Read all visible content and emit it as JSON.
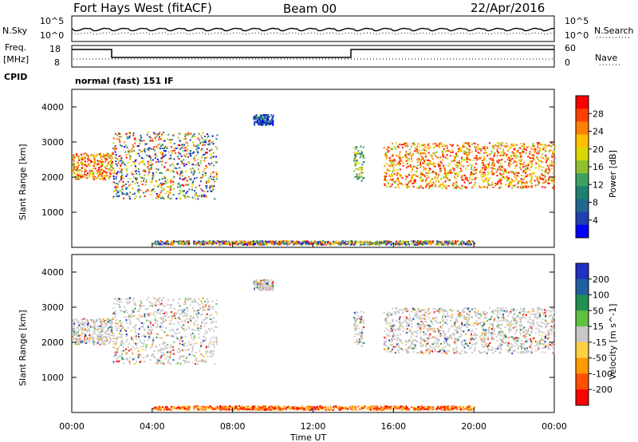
{
  "header": {
    "station": "Fort Hays West (fitACF)",
    "beam": "Beam 00",
    "date": "22/Apr/2016"
  },
  "noise_panel": {
    "left_label": "N.Sky",
    "right_label": "N.Search",
    "left_ticks": [
      "10^5",
      "10^0"
    ],
    "right_ticks": [
      "10^5",
      "10^0"
    ]
  },
  "freq_panel": {
    "left_label_1": "Freq.",
    "left_label_2": "[MHz]",
    "left_ticks": [
      "18",
      "8"
    ],
    "right_label": "Nave",
    "right_ticks": [
      "60",
      "0"
    ],
    "cpid_label": "CPID",
    "cpid_text": "normal (fast) 151 IF"
  },
  "chart_data": [
    {
      "type": "heatmap",
      "ylabel": "Slant Range [km]",
      "y_ticks": [
        "1000",
        "2000",
        "3000",
        "4000"
      ],
      "ylim": [
        0,
        4500
      ],
      "x_ticks": [
        "00:00",
        "04:00",
        "08:00",
        "12:00",
        "16:00",
        "20:00",
        "00:00"
      ],
      "xlabel": "Time UT",
      "colorbar": {
        "label": "Power [dB]",
        "ticks": [
          "28",
          "24",
          "20",
          "16",
          "12",
          "8",
          "4"
        ],
        "colors": [
          "#ff0000",
          "#ff4000",
          "#ff8000",
          "#ffc000",
          "#d8d800",
          "#90c030",
          "#40a060",
          "#208070",
          "#206890",
          "#2040b0",
          "#0000ff"
        ]
      },
      "echo_regions": [
        {
          "start_h": 0.0,
          "end_h": 2.0,
          "range_km": [
            1950,
            2700
          ],
          "level": "high"
        },
        {
          "start_h": 2.0,
          "end_h": 7.2,
          "range_km": [
            1400,
            3300
          ],
          "level": "mixed"
        },
        {
          "start_h": 9.0,
          "end_h": 10.0,
          "range_km": [
            3500,
            3800
          ],
          "level": "low"
        },
        {
          "start_h": 14.0,
          "end_h": 14.5,
          "range_km": [
            1900,
            2900
          ],
          "level": "mid"
        },
        {
          "start_h": 15.5,
          "end_h": 24.0,
          "range_km": [
            1700,
            3000
          ],
          "level": "high"
        }
      ]
    },
    {
      "type": "heatmap",
      "ylabel": "Slant Range [km]",
      "y_ticks": [
        "1000",
        "2000",
        "3000",
        "4000"
      ],
      "ylim": [
        0,
        4500
      ],
      "x_ticks": [
        "00:00",
        "04:00",
        "08:00",
        "12:00",
        "16:00",
        "20:00",
        "00:00"
      ],
      "xlabel": "Time UT",
      "colorbar": {
        "label": "Velocity [m s^-1]",
        "ticks": [
          "200",
          "100",
          "50",
          "15",
          "-15",
          "-50",
          "-100",
          "-200"
        ],
        "colors": [
          "#2030c0",
          "#2060a0",
          "#209050",
          "#60c040",
          "#c8c8c8",
          "#ffd040",
          "#ff9a00",
          "#ff5000",
          "#ff0000"
        ]
      }
    }
  ]
}
